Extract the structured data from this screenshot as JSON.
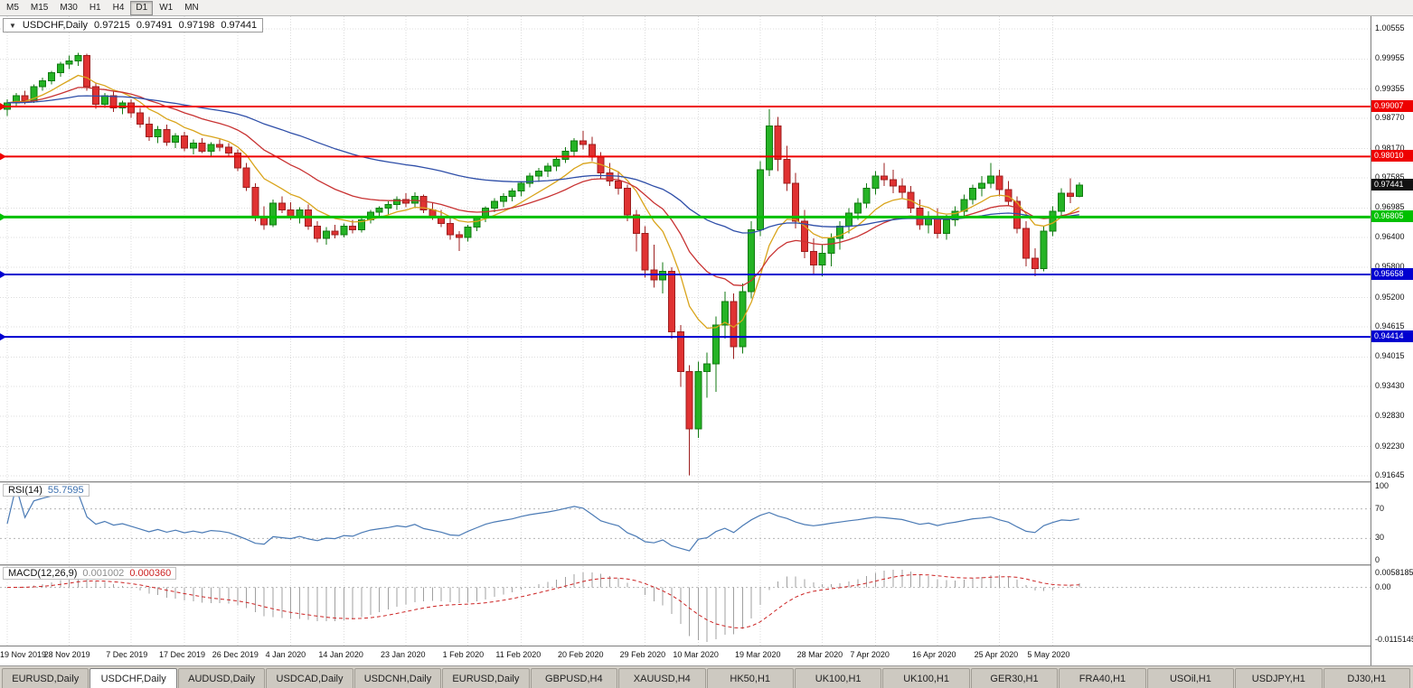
{
  "toolbar": {
    "timeframes": [
      {
        "label": "M5",
        "active": false
      },
      {
        "label": "M15",
        "active": false
      },
      {
        "label": "M30",
        "active": false
      },
      {
        "label": "H1",
        "active": false
      },
      {
        "label": "H4",
        "active": false
      },
      {
        "label": "D1",
        "active": true
      },
      {
        "label": "W1",
        "active": false
      },
      {
        "label": "MN",
        "active": false
      }
    ]
  },
  "chart_header": {
    "collapse_icon": "▼",
    "symbol": "USDCHF,Daily",
    "open": "0.97215",
    "high": "0.97491",
    "low": "0.97198",
    "close": "0.97441"
  },
  "price_axis": {
    "ticks": [
      "1.00555",
      "0.99955",
      "0.99355",
      "0.98770",
      "0.98170",
      "0.97585",
      "0.96985",
      "0.96400",
      "0.95800",
      "0.95200",
      "0.94615",
      "0.94015",
      "0.93430",
      "0.92830",
      "0.92230",
      "0.91645"
    ]
  },
  "current_price": {
    "value": 0.97441,
    "label": "0.97441",
    "tag_color": "#111111"
  },
  "hlines": [
    {
      "value": 0.99007,
      "label": "0.99007",
      "color": "#ee0000",
      "width": 2,
      "role": "resistance"
    },
    {
      "value": 0.9801,
      "label": "0.98010",
      "color": "#ee0000",
      "width": 2,
      "role": "resistance"
    },
    {
      "value": 0.96805,
      "label": "0.96805",
      "color": "#00c000",
      "width": 3,
      "role": "pivot"
    },
    {
      "value": 0.95658,
      "label": "0.95658",
      "color": "#0000d0",
      "width": 2,
      "role": "support"
    },
    {
      "value": 0.94414,
      "label": "0.94414",
      "color": "#0000d0",
      "width": 2,
      "role": "support"
    }
  ],
  "rsi_panel": {
    "name": "RSI(14)",
    "value": "55.7595",
    "levels": [
      70,
      30
    ],
    "axis_labels": [
      "100",
      "70",
      "30",
      "0"
    ],
    "color": "#4a7ab5"
  },
  "macd_panel": {
    "name": "MACD(12,26,9)",
    "main_value": "0.001002",
    "signal_value": "0.000360",
    "axis_top": "0.0058185",
    "axis_zero": "0.00",
    "axis_bottom": "-0.0115145",
    "histogram_color": "#a0a0a0",
    "signal_color": "#cc2222"
  },
  "tabs": [
    {
      "label": "EURUSD,Daily",
      "active": false
    },
    {
      "label": "USDCHF,Daily",
      "active": true
    },
    {
      "label": "AUDUSD,Daily",
      "active": false
    },
    {
      "label": "USDCAD,Daily",
      "active": false
    },
    {
      "label": "USDCNH,Daily",
      "active": false
    },
    {
      "label": "EURUSD,Daily",
      "active": false
    },
    {
      "label": "GBPUSD,H4",
      "active": false
    },
    {
      "label": "XAUUSD,H4",
      "active": false
    },
    {
      "label": "HK50,H1",
      "active": false
    },
    {
      "label": "UK100,H1",
      "active": false
    },
    {
      "label": "UK100,H1",
      "active": false
    },
    {
      "label": "GER30,H1",
      "active": false
    },
    {
      "label": "FRA40,H1",
      "active": false
    },
    {
      "label": "USOil,H1",
      "active": false
    },
    {
      "label": "USDJPY,H1",
      "active": false
    },
    {
      "label": "DJ30,H1",
      "active": false
    }
  ],
  "chart_data": {
    "type": "candlestick",
    "symbol": "USDCHF",
    "period": "Daily",
    "title": "USDCHF,Daily",
    "ylim": [
      0.91645,
      1.00555
    ],
    "colors": {
      "up": "#25b325",
      "down": "#e03232",
      "up_border": "#117a11",
      "down_border": "#9c1f1f"
    },
    "moving_averages": [
      {
        "period": 9,
        "method": "ema",
        "color": "#d9a41b"
      },
      {
        "period": 21,
        "method": "ema",
        "color": "#c83232"
      },
      {
        "period": 55,
        "method": "ema",
        "color": "#2e4ea8"
      }
    ],
    "x_ticks": [
      {
        "index": 0,
        "label": "19 Nov 2019"
      },
      {
        "index": 7,
        "label": "28 Nov 2019"
      },
      {
        "index": 14,
        "label": "7 Dec 2019"
      },
      {
        "index": 20,
        "label": "17 Dec 2019"
      },
      {
        "index": 26,
        "label": "26 Dec 2019"
      },
      {
        "index": 32,
        "label": "4 Jan 2020"
      },
      {
        "index": 38,
        "label": "14 Jan 2020"
      },
      {
        "index": 45,
        "label": "23 Jan 2020"
      },
      {
        "index": 52,
        "label": "1 Feb 2020"
      },
      {
        "index": 58,
        "label": "11 Feb 2020"
      },
      {
        "index": 65,
        "label": "20 Feb 2020"
      },
      {
        "index": 72,
        "label": "29 Feb 2020"
      },
      {
        "index": 78,
        "label": "10 Mar 2020"
      },
      {
        "index": 85,
        "label": "19 Mar 2020"
      },
      {
        "index": 92,
        "label": "28 Mar 2020"
      },
      {
        "index": 98,
        "label": "7 Apr 2020"
      },
      {
        "index": 105,
        "label": "16 Apr 2020"
      },
      {
        "index": 112,
        "label": "25 Apr 2020"
      },
      {
        "index": 118,
        "label": "5 May 2020"
      }
    ],
    "dates": [
      "19 Nov",
      "20 Nov",
      "21 Nov",
      "22 Nov",
      "25 Nov",
      "26 Nov",
      "27 Nov",
      "28 Nov",
      "29 Nov",
      "2 Dec",
      "3 Dec",
      "4 Dec",
      "5 Dec",
      "6 Dec",
      "9 Dec",
      "10 Dec",
      "11 Dec",
      "12 Dec",
      "13 Dec",
      "16 Dec",
      "17 Dec",
      "18 Dec",
      "19 Dec",
      "20 Dec",
      "23 Dec",
      "24 Dec",
      "26 Dec",
      "27 Dec",
      "30 Dec",
      "31 Dec",
      "2 Jan",
      "3 Jan",
      "6 Jan",
      "7 Jan",
      "8 Jan",
      "9 Jan",
      "10 Jan",
      "13 Jan",
      "14 Jan",
      "15 Jan",
      "16 Jan",
      "17 Jan",
      "20 Jan",
      "21 Jan",
      "22 Jan",
      "23 Jan",
      "24 Jan",
      "27 Jan",
      "28 Jan",
      "29 Jan",
      "30 Jan",
      "31 Jan",
      "3 Feb",
      "4 Feb",
      "5 Feb",
      "6 Feb",
      "7 Feb",
      "10 Feb",
      "11 Feb",
      "12 Feb",
      "13 Feb",
      "14 Feb",
      "17 Feb",
      "18 Feb",
      "19 Feb",
      "20 Feb",
      "21 Feb",
      "24 Feb",
      "25 Feb",
      "26 Feb",
      "27 Feb",
      "28 Feb",
      "2 Mar",
      "3 Mar",
      "4 Mar",
      "5 Mar",
      "6 Mar",
      "9 Mar",
      "10 Mar",
      "11 Mar",
      "12 Mar",
      "13 Mar",
      "16 Mar",
      "17 Mar",
      "18 Mar",
      "19 Mar",
      "20 Mar",
      "23 Mar",
      "24 Mar",
      "25 Mar",
      "26 Mar",
      "27 Mar",
      "30 Mar",
      "31 Mar",
      "1 Apr",
      "2 Apr",
      "3 Apr",
      "6 Apr",
      "7 Apr",
      "8 Apr",
      "9 Apr",
      "10 Apr",
      "13 Apr",
      "14 Apr",
      "15 Apr",
      "16 Apr",
      "17 Apr",
      "20 Apr",
      "21 Apr",
      "22 Apr",
      "23 Apr",
      "24 Apr",
      "27 Apr",
      "28 Apr",
      "29 Apr",
      "30 Apr",
      "1 May",
      "4 May",
      "5 May",
      "6 May",
      "7 May",
      "8 May"
    ],
    "ohlc": [
      [
        0.9895,
        0.9915,
        0.9882,
        0.9908
      ],
      [
        0.9908,
        0.9928,
        0.99,
        0.9922
      ],
      [
        0.9922,
        0.9932,
        0.9905,
        0.9912
      ],
      [
        0.9912,
        0.9945,
        0.9908,
        0.994
      ],
      [
        0.994,
        0.9958,
        0.9932,
        0.9952
      ],
      [
        0.9952,
        0.9972,
        0.9945,
        0.9968
      ],
      [
        0.9968,
        0.999,
        0.996,
        0.9985
      ],
      [
        0.9985,
        1.0002,
        0.9975,
        0.9992
      ],
      [
        0.9992,
        1.0008,
        0.9982,
        1.0002
      ],
      [
        1.0002,
        1.0006,
        0.9932,
        0.994
      ],
      [
        0.994,
        0.9948,
        0.9896,
        0.9905
      ],
      [
        0.9905,
        0.9928,
        0.9898,
        0.9922
      ],
      [
        0.9922,
        0.993,
        0.989,
        0.9898
      ],
      [
        0.9898,
        0.9912,
        0.9885,
        0.9908
      ],
      [
        0.9908,
        0.9915,
        0.9878,
        0.9888
      ],
      [
        0.9888,
        0.9898,
        0.9858,
        0.9866
      ],
      [
        0.9866,
        0.988,
        0.9832,
        0.984
      ],
      [
        0.984,
        0.9862,
        0.9828,
        0.9855
      ],
      [
        0.9855,
        0.9865,
        0.9822,
        0.983
      ],
      [
        0.983,
        0.9848,
        0.9818,
        0.9842
      ],
      [
        0.9842,
        0.985,
        0.9812,
        0.9818
      ],
      [
        0.9818,
        0.9835,
        0.9805,
        0.9828
      ],
      [
        0.9828,
        0.9838,
        0.9808,
        0.9812
      ],
      [
        0.9812,
        0.983,
        0.98,
        0.9825
      ],
      [
        0.9825,
        0.9835,
        0.9812,
        0.982
      ],
      [
        0.982,
        0.9828,
        0.9802,
        0.9808
      ],
      [
        0.9808,
        0.9815,
        0.9772,
        0.9778
      ],
      [
        0.9778,
        0.9788,
        0.9732,
        0.974
      ],
      [
        0.974,
        0.9748,
        0.9672,
        0.9682
      ],
      [
        0.9682,
        0.9702,
        0.9655,
        0.9665
      ],
      [
        0.9665,
        0.9715,
        0.966,
        0.9708
      ],
      [
        0.9708,
        0.9722,
        0.9688,
        0.9695
      ],
      [
        0.9695,
        0.971,
        0.9675,
        0.9682
      ],
      [
        0.9682,
        0.97,
        0.9668,
        0.9695
      ],
      [
        0.9695,
        0.9705,
        0.9655,
        0.9662
      ],
      [
        0.9662,
        0.9672,
        0.963,
        0.9638
      ],
      [
        0.9638,
        0.966,
        0.9625,
        0.9652
      ],
      [
        0.9652,
        0.9665,
        0.9638,
        0.9645
      ],
      [
        0.9645,
        0.9668,
        0.964,
        0.9662
      ],
      [
        0.9662,
        0.9675,
        0.9648,
        0.9655
      ],
      [
        0.9655,
        0.968,
        0.965,
        0.9675
      ],
      [
        0.9675,
        0.9695,
        0.9668,
        0.969
      ],
      [
        0.969,
        0.9702,
        0.9678,
        0.9698
      ],
      [
        0.9698,
        0.9712,
        0.9685,
        0.9705
      ],
      [
        0.9705,
        0.9722,
        0.9695,
        0.9715
      ],
      [
        0.9715,
        0.9728,
        0.97,
        0.9708
      ],
      [
        0.9708,
        0.973,
        0.9698,
        0.9722
      ],
      [
        0.9722,
        0.9725,
        0.9688,
        0.9695
      ],
      [
        0.9695,
        0.9708,
        0.9675,
        0.9682
      ],
      [
        0.9682,
        0.9695,
        0.966,
        0.9668
      ],
      [
        0.9668,
        0.9678,
        0.9635,
        0.9645
      ],
      [
        0.9645,
        0.9652,
        0.9613,
        0.964
      ],
      [
        0.964,
        0.9665,
        0.9632,
        0.966
      ],
      [
        0.966,
        0.9682,
        0.9652,
        0.9678
      ],
      [
        0.9678,
        0.9702,
        0.967,
        0.9698
      ],
      [
        0.9698,
        0.9718,
        0.969,
        0.9712
      ],
      [
        0.9712,
        0.9728,
        0.97,
        0.9722
      ],
      [
        0.9722,
        0.9738,
        0.9712,
        0.9732
      ],
      [
        0.9732,
        0.9752,
        0.9722,
        0.9748
      ],
      [
        0.9748,
        0.9768,
        0.974,
        0.9762
      ],
      [
        0.9762,
        0.9778,
        0.975,
        0.9772
      ],
      [
        0.9772,
        0.9788,
        0.976,
        0.9782
      ],
      [
        0.9782,
        0.98,
        0.9772,
        0.9795
      ],
      [
        0.9795,
        0.982,
        0.9788,
        0.9812
      ],
      [
        0.9812,
        0.9838,
        0.9802,
        0.9832
      ],
      [
        0.9832,
        0.9852,
        0.9815,
        0.9825
      ],
      [
        0.9825,
        0.984,
        0.9792,
        0.98
      ],
      [
        0.98,
        0.981,
        0.9758,
        0.9768
      ],
      [
        0.9768,
        0.9788,
        0.9742,
        0.9752
      ],
      [
        0.9752,
        0.9772,
        0.9725,
        0.9738
      ],
      [
        0.9738,
        0.9745,
        0.9672,
        0.9685
      ],
      [
        0.9685,
        0.9695,
        0.9612,
        0.9648
      ],
      [
        0.9648,
        0.9662,
        0.956,
        0.9575
      ],
      [
        0.9575,
        0.9625,
        0.954,
        0.9555
      ],
      [
        0.9555,
        0.959,
        0.9528,
        0.9572
      ],
      [
        0.9572,
        0.958,
        0.9438,
        0.9452
      ],
      [
        0.9452,
        0.9465,
        0.9342,
        0.9372
      ],
      [
        0.9372,
        0.9385,
        0.9165,
        0.9258
      ],
      [
        0.9258,
        0.9392,
        0.924,
        0.9372
      ],
      [
        0.9372,
        0.941,
        0.932,
        0.9388
      ],
      [
        0.9388,
        0.9482,
        0.9332,
        0.9465
      ],
      [
        0.9465,
        0.9532,
        0.9438,
        0.9512
      ],
      [
        0.9512,
        0.9528,
        0.9398,
        0.9422
      ],
      [
        0.9422,
        0.9548,
        0.9408,
        0.9532
      ],
      [
        0.9532,
        0.9672,
        0.9518,
        0.9655
      ],
      [
        0.9655,
        0.9792,
        0.9642,
        0.9775
      ],
      [
        0.9775,
        0.9895,
        0.9762,
        0.9862
      ],
      [
        0.9862,
        0.988,
        0.9772,
        0.9795
      ],
      [
        0.9795,
        0.9822,
        0.9732,
        0.9748
      ],
      [
        0.9748,
        0.9768,
        0.9658,
        0.9672
      ],
      [
        0.9672,
        0.9695,
        0.9598,
        0.9612
      ],
      [
        0.9612,
        0.9638,
        0.9568,
        0.9585
      ],
      [
        0.9585,
        0.9625,
        0.9562,
        0.9608
      ],
      [
        0.9608,
        0.9648,
        0.9582,
        0.9638
      ],
      [
        0.9638,
        0.9672,
        0.9615,
        0.9662
      ],
      [
        0.9662,
        0.9698,
        0.9648,
        0.9688
      ],
      [
        0.9688,
        0.9718,
        0.9675,
        0.9708
      ],
      [
        0.9708,
        0.9748,
        0.9698,
        0.9738
      ],
      [
        0.9738,
        0.9772,
        0.9725,
        0.9762
      ],
      [
        0.9762,
        0.9788,
        0.9742,
        0.9755
      ],
      [
        0.9755,
        0.9775,
        0.9728,
        0.9742
      ],
      [
        0.9742,
        0.9758,
        0.9718,
        0.973
      ],
      [
        0.973,
        0.9742,
        0.9688,
        0.9698
      ],
      [
        0.9698,
        0.9715,
        0.9655,
        0.9665
      ],
      [
        0.9665,
        0.9692,
        0.9648,
        0.9682
      ],
      [
        0.9682,
        0.9698,
        0.9638,
        0.9648
      ],
      [
        0.9648,
        0.9685,
        0.9635,
        0.9675
      ],
      [
        0.9675,
        0.9702,
        0.9662,
        0.9692
      ],
      [
        0.9692,
        0.9725,
        0.9682,
        0.9715
      ],
      [
        0.9715,
        0.9745,
        0.9705,
        0.9738
      ],
      [
        0.9738,
        0.9762,
        0.9722,
        0.9748
      ],
      [
        0.9748,
        0.9788,
        0.9738,
        0.9762
      ],
      [
        0.9762,
        0.9775,
        0.9722,
        0.9735
      ],
      [
        0.9735,
        0.9752,
        0.9702,
        0.9712
      ],
      [
        0.9712,
        0.9722,
        0.9648,
        0.9658
      ],
      [
        0.9658,
        0.9672,
        0.9582,
        0.9598
      ],
      [
        0.9598,
        0.9618,
        0.9562,
        0.9578
      ],
      [
        0.9578,
        0.9662,
        0.9572,
        0.9652
      ],
      [
        0.9652,
        0.9702,
        0.9642,
        0.9692
      ],
      [
        0.9692,
        0.9738,
        0.9682,
        0.9728
      ],
      [
        0.9728,
        0.9758,
        0.9708,
        0.9722
      ],
      [
        0.97215,
        0.97491,
        0.97198,
        0.97441
      ]
    ]
  }
}
